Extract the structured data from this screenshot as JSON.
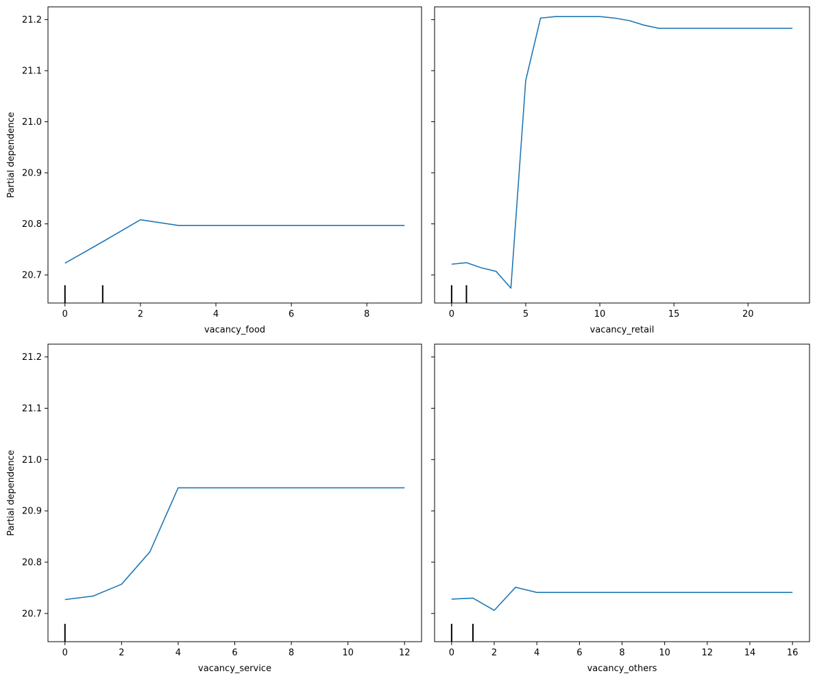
{
  "chart_data": [
    {
      "type": "line",
      "title": "",
      "xlabel": "vacancy_food",
      "ylabel": "Partial dependence",
      "xlim": [
        -0.45,
        9.45
      ],
      "ylim": [
        20.645,
        21.225
      ],
      "xticks": [
        0,
        2,
        4,
        6,
        8
      ],
      "yticks": [
        20.7,
        20.8,
        20.9,
        21.0,
        21.1,
        21.2
      ],
      "show_yticklabels": true,
      "grid": false,
      "color": "#1f77b4",
      "series": [
        {
          "x": [
            0,
            1,
            2,
            3,
            4,
            5,
            6,
            7,
            8,
            9
          ],
          "y": [
            20.723,
            20.765,
            20.808,
            20.797,
            20.797,
            20.797,
            20.797,
            20.797,
            20.797,
            20.797
          ]
        }
      ],
      "rug": [
        0,
        1
      ]
    },
    {
      "type": "line",
      "title": "",
      "xlabel": "vacancy_retail",
      "ylabel": "",
      "xlim": [
        -1.15,
        24.15
      ],
      "ylim": [
        20.645,
        21.225
      ],
      "xticks": [
        0,
        5,
        10,
        15,
        20
      ],
      "yticks": [
        20.7,
        20.8,
        20.9,
        21.0,
        21.1,
        21.2
      ],
      "show_yticklabels": false,
      "grid": false,
      "color": "#1f77b4",
      "series": [
        {
          "x": [
            0,
            1,
            2,
            3,
            4,
            5,
            6,
            7,
            8,
            9,
            10,
            11,
            12,
            13,
            14,
            15,
            16,
            17,
            18,
            19,
            20,
            21,
            22,
            23
          ],
          "y": [
            20.721,
            20.724,
            20.714,
            20.707,
            20.674,
            21.081,
            21.203,
            21.206,
            21.206,
            21.206,
            21.206,
            21.203,
            21.198,
            21.189,
            21.183,
            21.183,
            21.183,
            21.183,
            21.183,
            21.183,
            21.183,
            21.183,
            21.183,
            21.183
          ]
        }
      ],
      "rug": [
        0,
        1
      ]
    },
    {
      "type": "line",
      "title": "",
      "xlabel": "vacancy_service",
      "ylabel": "Partial dependence",
      "xlim": [
        -0.6,
        12.6
      ],
      "ylim": [
        20.645,
        21.225
      ],
      "xticks": [
        0,
        2,
        4,
        6,
        8,
        10,
        12
      ],
      "yticks": [
        20.7,
        20.8,
        20.9,
        21.0,
        21.1,
        21.2
      ],
      "show_yticklabels": true,
      "grid": false,
      "color": "#1f77b4",
      "series": [
        {
          "x": [
            0,
            1,
            2,
            3,
            4,
            5,
            6,
            7,
            8,
            9,
            10,
            11,
            12
          ],
          "y": [
            20.727,
            20.734,
            20.757,
            20.82,
            20.945,
            20.945,
            20.945,
            20.945,
            20.945,
            20.945,
            20.945,
            20.945,
            20.945
          ]
        }
      ],
      "rug": [
        0
      ]
    },
    {
      "type": "line",
      "title": "",
      "xlabel": "vacancy_others",
      "ylabel": "",
      "xlim": [
        -0.8,
        16.8
      ],
      "ylim": [
        20.645,
        21.225
      ],
      "xticks": [
        0,
        2,
        4,
        6,
        8,
        10,
        12,
        14,
        16
      ],
      "yticks": [
        20.7,
        20.8,
        20.9,
        21.0,
        21.1,
        21.2
      ],
      "show_yticklabels": false,
      "grid": false,
      "color": "#1f77b4",
      "series": [
        {
          "x": [
            0,
            1,
            2,
            3,
            4,
            5,
            6,
            7,
            8,
            9,
            10,
            11,
            12,
            13,
            14,
            15,
            16
          ],
          "y": [
            20.728,
            20.73,
            20.706,
            20.751,
            20.741,
            20.741,
            20.741,
            20.741,
            20.741,
            20.741,
            20.741,
            20.741,
            20.741,
            20.741,
            20.741,
            20.741,
            20.741
          ]
        }
      ],
      "rug": [
        0,
        1
      ]
    }
  ]
}
